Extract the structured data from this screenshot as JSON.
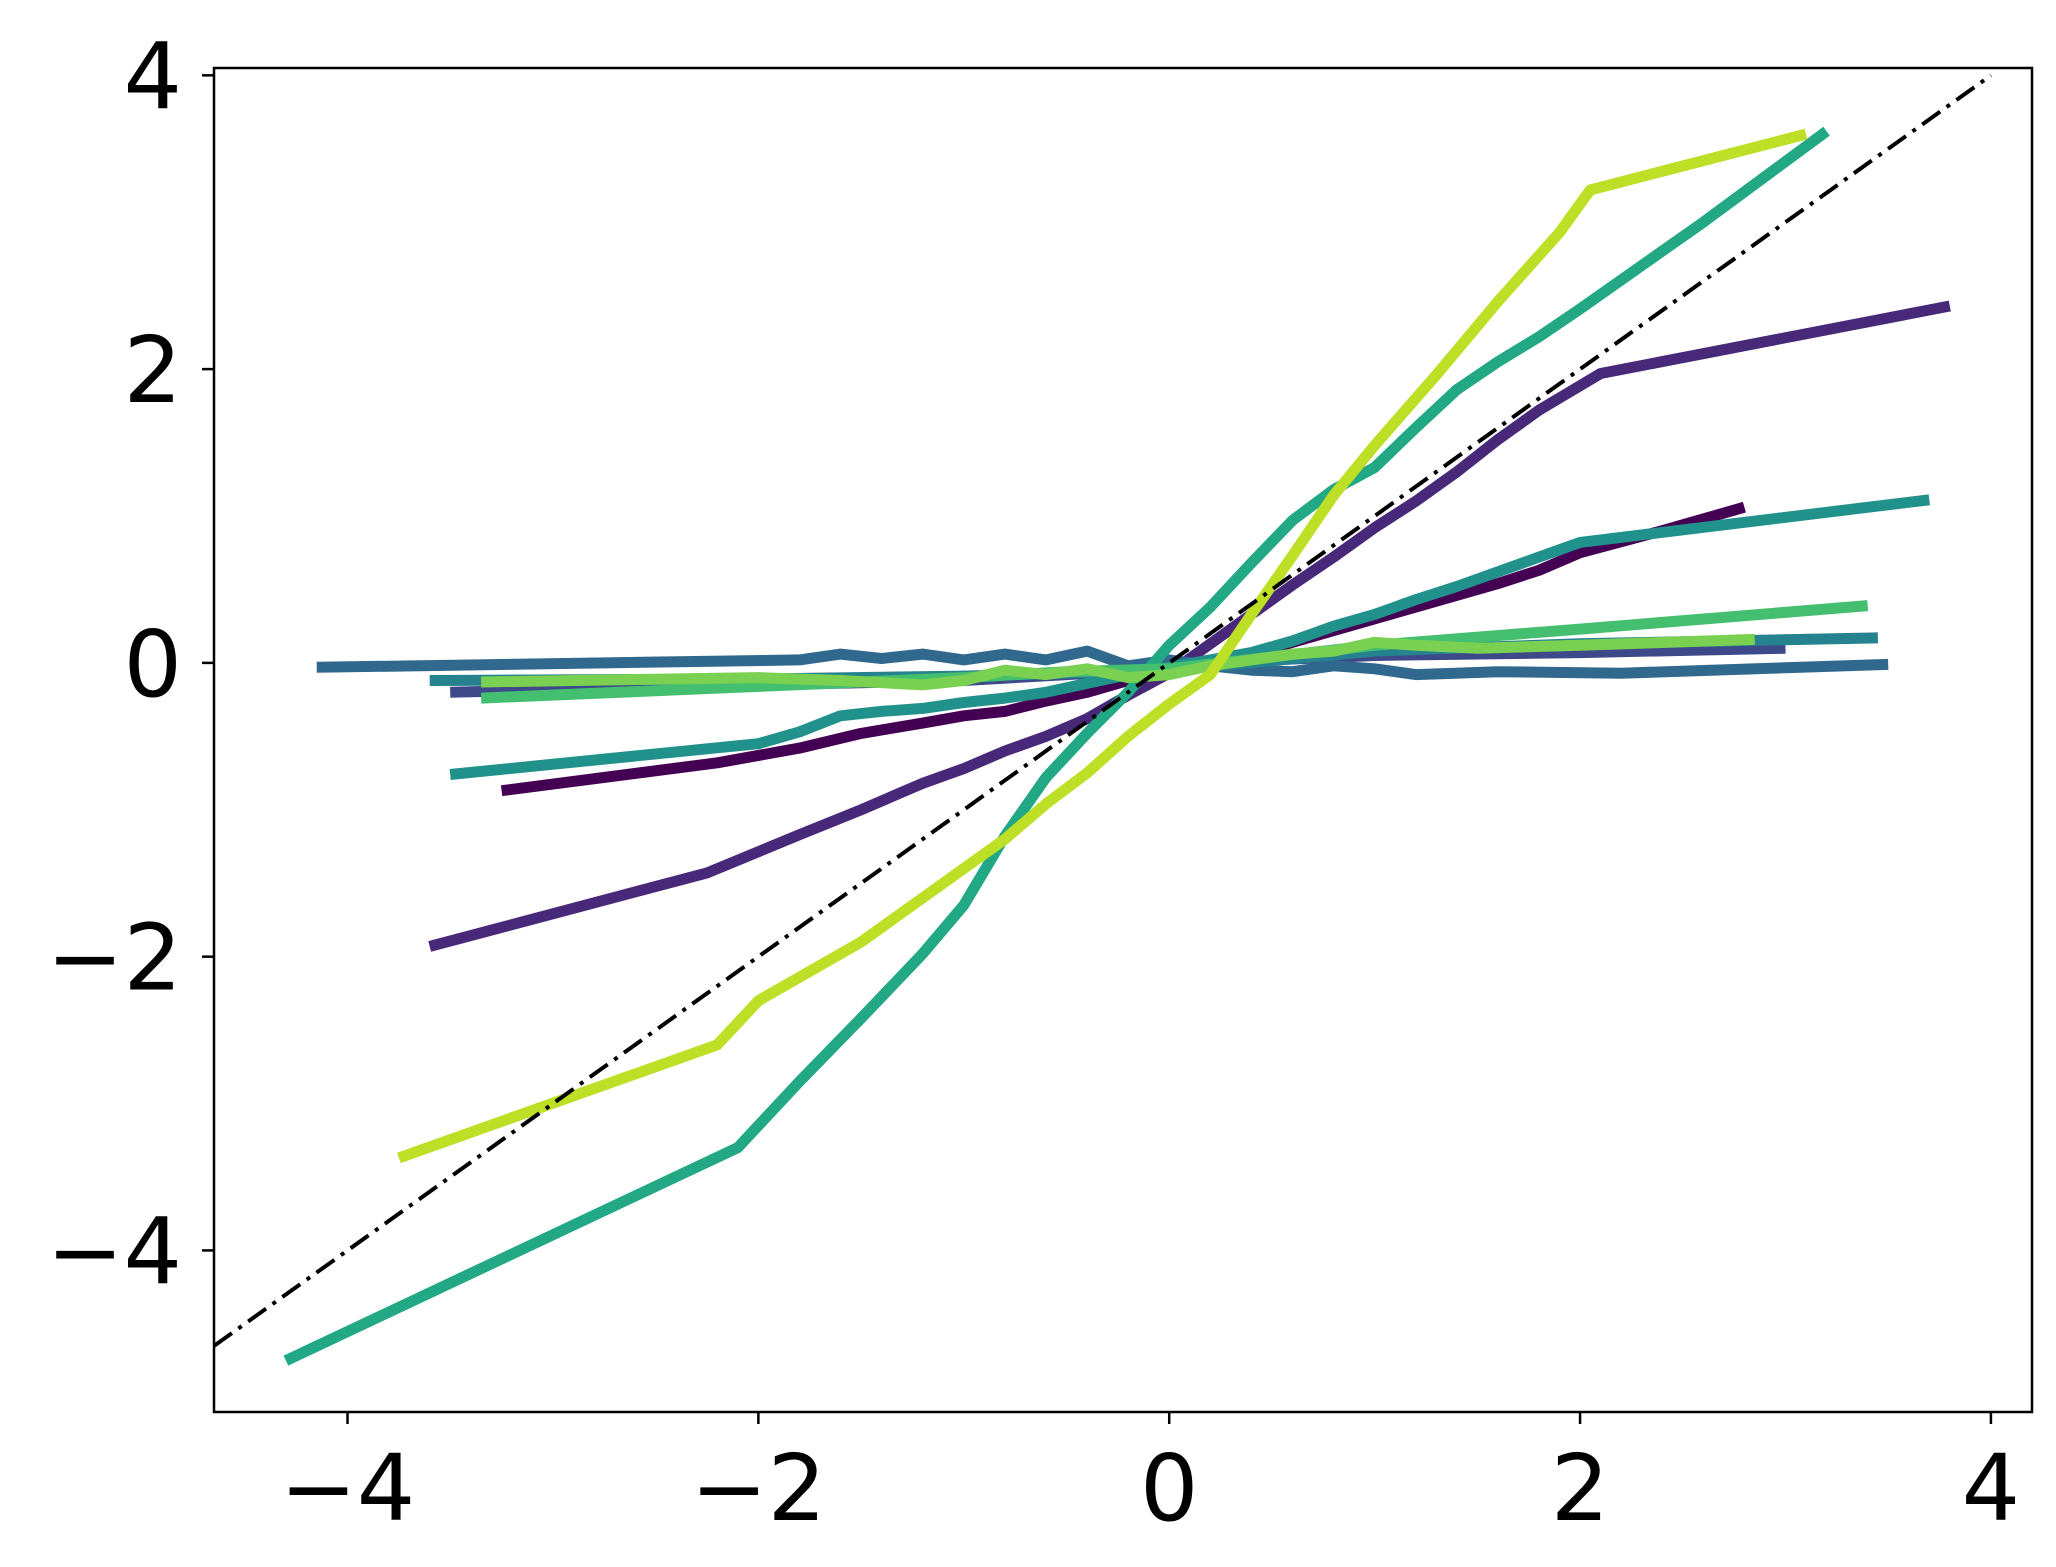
{
  "chart_data": {
    "type": "line",
    "title": "",
    "xlabel": "",
    "ylabel": "",
    "xlim": [
      -4.65,
      4.2
    ],
    "ylim": [
      -5.1,
      4.05
    ],
    "grid": false,
    "legend": "none",
    "x_ticks": [
      {
        "value": -4,
        "label": "−4"
      },
      {
        "value": -2,
        "label": "−2"
      },
      {
        "value": 0,
        "label": "0"
      },
      {
        "value": 2,
        "label": "2"
      },
      {
        "value": 4,
        "label": "4"
      }
    ],
    "y_ticks": [
      {
        "value": -4,
        "label": "−4"
      },
      {
        "value": -2,
        "label": "−2"
      },
      {
        "value": 0,
        "label": "0"
      },
      {
        "value": 2,
        "label": "2"
      },
      {
        "value": 4,
        "label": "4"
      }
    ],
    "reference_line": {
      "style": "dash-dot",
      "color": "#000000",
      "x": [
        -4.65,
        4.0
      ],
      "y": [
        -4.65,
        4.0
      ]
    },
    "series": [
      {
        "color": "#440154",
        "x": [
          -3.25,
          -2.2,
          -1.8,
          -1.5,
          -1.2,
          -1.0,
          -0.8,
          -0.6,
          -0.4,
          -0.2,
          0.0,
          0.2,
          0.4,
          0.6,
          0.8,
          1.0,
          1.2,
          1.4,
          1.6,
          1.8,
          2.0,
          2.4,
          2.8
        ],
        "y": [
          -0.87,
          -0.68,
          -0.58,
          -0.48,
          -0.41,
          -0.36,
          -0.33,
          -0.26,
          -0.2,
          -0.12,
          -0.05,
          0.0,
          0.06,
          0.14,
          0.22,
          0.3,
          0.38,
          0.46,
          0.54,
          0.63,
          0.75,
          0.9,
          1.06
        ]
      },
      {
        "color": "#482878",
        "x": [
          -3.6,
          -2.25,
          -1.8,
          -1.5,
          -1.2,
          -1.0,
          -0.8,
          -0.6,
          -0.4,
          -0.2,
          0.0,
          0.2,
          0.4,
          0.6,
          0.8,
          1.0,
          1.2,
          1.4,
          1.6,
          1.8,
          2.1,
          3.8
        ],
        "y": [
          -1.93,
          -1.43,
          -1.17,
          -1.0,
          -0.82,
          -0.72,
          -0.6,
          -0.5,
          -0.38,
          -0.22,
          -0.07,
          0.13,
          0.33,
          0.53,
          0.72,
          0.92,
          1.1,
          1.3,
          1.52,
          1.72,
          1.97,
          2.43
        ]
      },
      {
        "color": "#3e4989",
        "x": [
          -3.5,
          -2.0,
          -1.0,
          -0.5,
          0.0,
          0.5,
          1.0,
          2.0,
          3.0
        ],
        "y": [
          -0.2,
          -0.15,
          -0.12,
          -0.08,
          -0.04,
          0.02,
          0.05,
          0.07,
          0.1
        ]
      },
      {
        "color": "#31688e",
        "x": [
          -4.15,
          -1.8,
          -1.6,
          -1.4,
          -1.2,
          -1.0,
          -0.8,
          -0.6,
          -0.4,
          -0.2,
          0.0,
          0.2,
          0.4,
          0.6,
          0.8,
          1.0,
          1.2,
          1.6,
          2.2,
          3.5
        ],
        "y": [
          -0.03,
          0.02,
          0.06,
          0.03,
          0.06,
          0.02,
          0.06,
          0.02,
          0.08,
          -0.02,
          0.02,
          -0.02,
          -0.05,
          -0.06,
          -0.02,
          -0.04,
          -0.08,
          -0.06,
          -0.07,
          -0.01
        ]
      },
      {
        "color": "#26828e",
        "x": [
          -3.6,
          -2.0,
          -1.0,
          0.0,
          1.0,
          2.0,
          3.45
        ],
        "y": [
          -0.12,
          -0.11,
          -0.09,
          -0.05,
          0.08,
          0.13,
          0.17
        ]
      },
      {
        "color": "#21918c",
        "x": [
          -3.5,
          -2.0,
          -1.8,
          -1.6,
          -1.4,
          -1.2,
          -1.0,
          -0.8,
          -0.6,
          -0.4,
          -0.2,
          0.0,
          0.2,
          0.4,
          0.6,
          0.8,
          1.0,
          1.2,
          1.4,
          1.6,
          1.8,
          2.0,
          3.7
        ],
        "y": [
          -0.76,
          -0.55,
          -0.47,
          -0.36,
          -0.33,
          -0.31,
          -0.27,
          -0.24,
          -0.2,
          -0.14,
          -0.08,
          -0.03,
          0.02,
          0.07,
          0.15,
          0.25,
          0.33,
          0.43,
          0.52,
          0.62,
          0.72,
          0.82,
          1.11
        ]
      },
      {
        "color": "#22a884",
        "x": [
          -4.3,
          -2.1,
          -1.8,
          -1.5,
          -1.2,
          -1.0,
          -0.8,
          -0.6,
          -0.4,
          -0.2,
          0.0,
          0.2,
          0.4,
          0.6,
          0.8,
          1.0,
          1.2,
          1.4,
          1.6,
          1.8,
          2.0,
          2.6,
          3.2
        ],
        "y": [
          -4.75,
          -3.3,
          -2.85,
          -2.42,
          -1.98,
          -1.65,
          -1.18,
          -0.78,
          -0.48,
          -0.2,
          0.12,
          0.38,
          0.68,
          0.97,
          1.18,
          1.33,
          1.6,
          1.86,
          2.05,
          2.22,
          2.41,
          3.0,
          3.62
        ]
      },
      {
        "color": "#44bf70",
        "x": [
          -3.35,
          -2.0,
          -1.0,
          -0.5,
          0.0,
          0.5,
          1.0,
          2.0,
          3.4
        ],
        "y": [
          -0.24,
          -0.16,
          -0.1,
          -0.06,
          -0.04,
          0.04,
          0.12,
          0.23,
          0.39
        ]
      },
      {
        "color": "#7ad151",
        "x": [
          -3.35,
          -2.0,
          -1.6,
          -1.2,
          -1.0,
          -0.8,
          -0.6,
          -0.4,
          -0.2,
          0.0,
          0.2,
          0.4,
          0.6,
          0.8,
          1.0,
          1.2,
          1.5,
          2.0,
          2.85
        ],
        "y": [
          -0.13,
          -0.1,
          -0.12,
          -0.15,
          -0.12,
          -0.05,
          -0.08,
          -0.04,
          -0.1,
          -0.08,
          -0.02,
          0.02,
          0.06,
          0.08,
          0.14,
          0.12,
          0.1,
          0.12,
          0.16
        ]
      },
      {
        "color": "#bddf26",
        "x": [
          -3.75,
          -2.2,
          -2.0,
          -1.5,
          -1.0,
          -0.8,
          -0.6,
          -0.4,
          -0.2,
          0.0,
          0.2,
          0.4,
          0.6,
          0.8,
          1.0,
          1.3,
          1.6,
          1.9,
          2.05,
          3.1
        ],
        "y": [
          -3.37,
          -2.6,
          -2.3,
          -1.9,
          -1.4,
          -1.2,
          -0.96,
          -0.75,
          -0.5,
          -0.28,
          -0.08,
          0.33,
          0.73,
          1.14,
          1.48,
          1.96,
          2.46,
          2.93,
          3.22,
          3.6
        ]
      }
    ]
  }
}
